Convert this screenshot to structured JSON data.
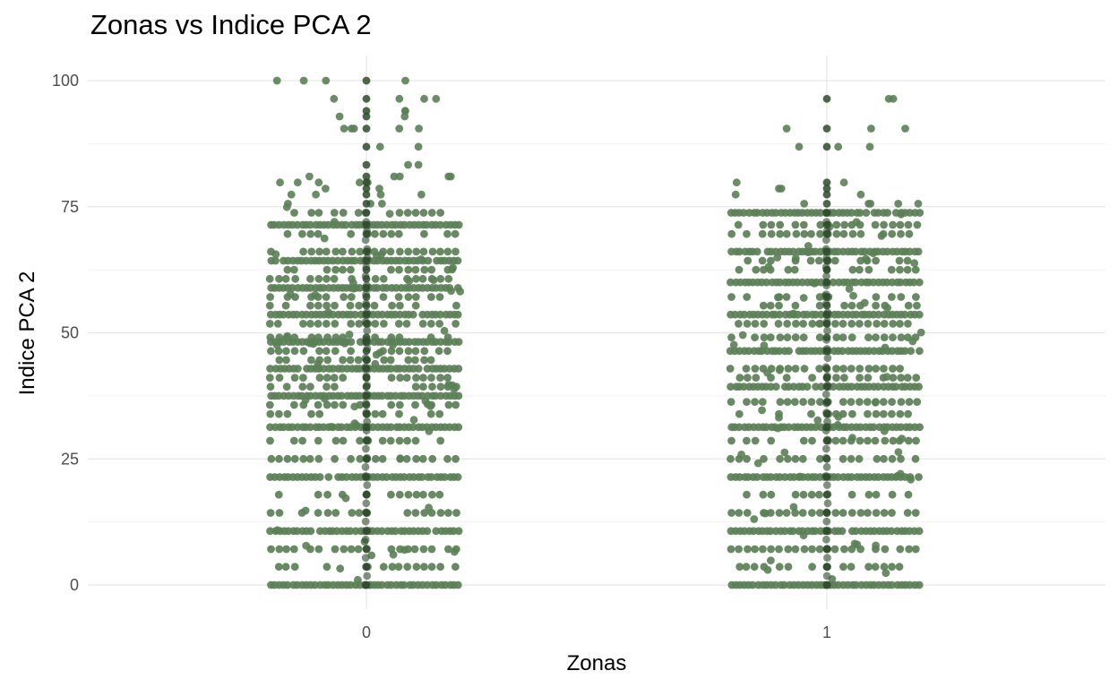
{
  "chart_data": {
    "type": "scatter",
    "title": "Zonas vs Indice PCA 2",
    "xlabel": "Zonas",
    "ylabel": "Indice PCA 2",
    "categories": [
      "0",
      "1"
    ],
    "ylim": [
      0,
      100
    ],
    "y_ticks": [
      0,
      25,
      50,
      75,
      100
    ],
    "grid": true,
    "jitter": true,
    "point_color": "#5b7f56",
    "overlap_color": "#2f4a2d",
    "series": [
      {
        "category": "0",
        "value_levels": [
          0,
          3.6,
          7.1,
          10.7,
          14.3,
          17.9,
          21.4,
          25,
          28.6,
          31.3,
          33.9,
          35.7,
          37.5,
          39.3,
          41.1,
          42.9,
          44.6,
          46.4,
          48.2,
          49.1,
          51.8,
          53.6,
          55.4,
          57.1,
          58.9,
          60.7,
          62.5,
          64.3,
          66.1,
          69.6,
          71.4,
          73.8
        ],
        "upper_values": [
          75.6,
          77.4,
          78.6,
          79.8,
          81,
          83.3,
          86.9,
          90.5,
          92.9,
          94,
          96.4,
          100
        ]
      },
      {
        "category": "1",
        "value_levels": [
          0,
          3.6,
          7.1,
          10.7,
          14.3,
          17.9,
          21.4,
          25,
          28.6,
          31.3,
          33.9,
          36.3,
          39.3,
          41.1,
          42.9,
          46.4,
          49.1,
          51.8,
          53.6,
          55.4,
          57.1,
          60,
          62.5,
          64.3,
          66.1,
          69.6,
          71.4,
          73.8
        ],
        "upper_values": [
          75.6,
          77.4,
          78.6,
          79.8,
          86.9,
          90.5,
          96.4
        ]
      }
    ]
  }
}
